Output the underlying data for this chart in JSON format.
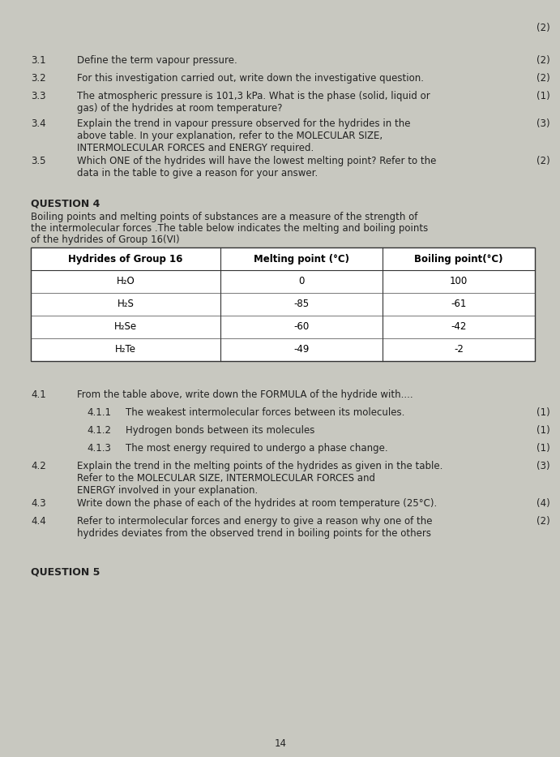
{
  "bg_color": "#c8c8c0",
  "paper_color": "#dcdcd4",
  "fs": 8.5,
  "fs_bold": 9.0,
  "top_mark": "(2)",
  "items": [
    {
      "num": "3.1",
      "text": "Define the term vapour pressure.",
      "mark": "(2)",
      "lines": 1
    },
    {
      "num": "3.2",
      "text": "For this investigation carried out, write down the investigative question.",
      "mark": "(2)",
      "lines": 1
    },
    {
      "num": "3.3",
      "text": "The atmospheric pressure is 101,3 kPa. What is the phase (solid, liquid or\ngas) of the hydrides at room temperature?",
      "mark": "(1)",
      "lines": 2
    },
    {
      "num": "3.4",
      "text": "Explain the trend in vapour pressure observed for the hydrides in the\nabove table. In your explanation, refer to the MOLECULAR SIZE,\nINTERMOLECULAR FORCES and ENERGY required.",
      "mark": "(3)",
      "lines": 3
    },
    {
      "num": "3.5",
      "text": "Which ONE of the hydrides will have the lowest melting point? Refer to the\ndata in the table to give a reason for your answer.",
      "mark": "(2)",
      "lines": 2
    }
  ],
  "q4_heading": "QUESTION 4",
  "q4_intro_lines": [
    "Boiling points and melting points of substances are a measure of the strength of",
    "the intermolecular forces .The table below indicates the melting and boiling points",
    "of the hydrides of Group 16(VI)"
  ],
  "table_headers": [
    "Hydrides of Group 16",
    "Melting point (°C)",
    "Boiling point(°C)"
  ],
  "table_rows": [
    [
      "H₂O",
      "0",
      "100"
    ],
    [
      "H₂S",
      "-85",
      "-61"
    ],
    [
      "H₂Se",
      "-60",
      "-42"
    ],
    [
      "H₂Te",
      "-49",
      "-2"
    ]
  ],
  "q4_items": [
    {
      "num": "4.1",
      "indent": 1,
      "text": "From the table above, write down the FORMULA of the hydride with....",
      "mark": "",
      "lines": 1
    },
    {
      "num": "4.1.1",
      "indent": 2,
      "text": "The weakest intermolecular forces between its molecules.",
      "mark": "(1)",
      "lines": 1
    },
    {
      "num": "4.1.2",
      "indent": 2,
      "text": "Hydrogen bonds between its molecules",
      "mark": "(1)",
      "lines": 1
    },
    {
      "num": "4.1.3",
      "indent": 2,
      "text": "The most energy required to undergo a phase change.",
      "mark": "(1)",
      "lines": 1
    },
    {
      "num": "4.2",
      "indent": 1,
      "text": "Explain the trend in the melting points of the hydrides as given in the table.\nRefer to the MOLECULAR SIZE, INTERMOLECULAR FORCES and\nENERGY involved in your explanation.",
      "mark": "(3)",
      "lines": 3
    },
    {
      "num": "4.3",
      "indent": 1,
      "text": "Write down the phase of each of the hydrides at room temperature (25°C).",
      "mark": "(4)",
      "lines": 1
    },
    {
      "num": "4.4",
      "indent": 1,
      "text": "Refer to intermolecular forces and energy to give a reason why one of the\nhydrides deviates from the observed trend in boiling points for the others",
      "mark": "(2)",
      "lines": 2
    }
  ],
  "q5_heading": "QUESTION 5",
  "page_num": "14"
}
